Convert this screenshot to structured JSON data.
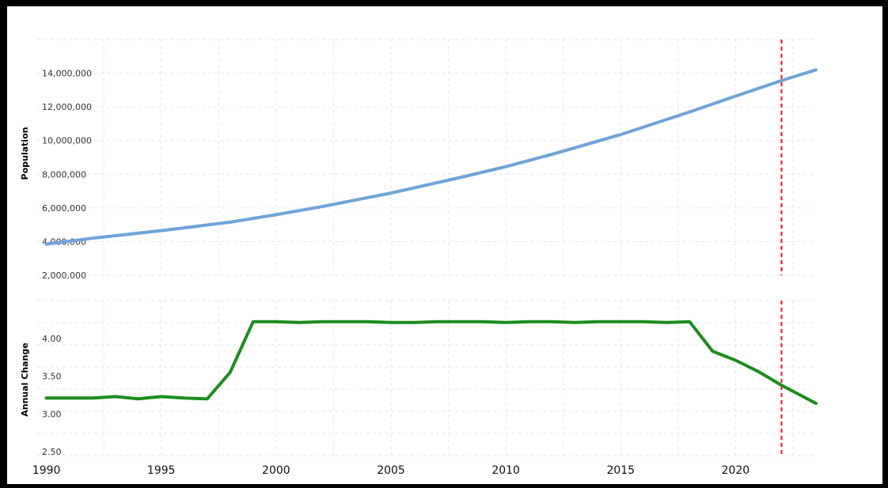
{
  "chart_data": [
    {
      "type": "line",
      "title": "",
      "xlabel": "",
      "ylabel": "Population",
      "ylim": [
        2000000,
        16000000
      ],
      "xlim": [
        1989.6,
        2023.5
      ],
      "yticks": [
        {
          "value": 2000000,
          "label": "2,000,000"
        },
        {
          "value": 4000000,
          "label": "4,000,000"
        },
        {
          "value": 6000000,
          "label": "6,000,000"
        },
        {
          "value": 8000000,
          "label": "8,000,000"
        },
        {
          "value": 10000000,
          "label": "10,000,000"
        },
        {
          "value": 12000000,
          "label": "12,000,000"
        },
        {
          "value": 14000000,
          "label": "14,000,000"
        }
      ],
      "color": "#6fa3d9",
      "reference_line": {
        "x": 2022,
        "color": "#e0141e",
        "style": "dashed"
      },
      "grid": true,
      "x": [
        1990,
        1992,
        1995,
        1998,
        2000,
        2002,
        2005,
        2008,
        2010,
        2012,
        2015,
        2018,
        2020,
        2022,
        2023.5
      ],
      "y": [
        3850000,
        4200000,
        4650000,
        5150000,
        5600000,
        6080000,
        6880000,
        7800000,
        8450000,
        9180000,
        10360000,
        11700000,
        12640000,
        13560000,
        14200000
      ]
    },
    {
      "type": "line",
      "title": "",
      "xlabel": "",
      "ylabel": "Annual Change",
      "ylim": [
        2.45,
        4.5
      ],
      "xlim": [
        1989.6,
        2023.5
      ],
      "yticks": [
        {
          "value": 2.5,
          "label": "2.50"
        },
        {
          "value": 3.0,
          "label": "3.00"
        },
        {
          "value": 3.5,
          "label": "3.50"
        },
        {
          "value": 4.0,
          "label": "4.00"
        }
      ],
      "xticks": [
        1990,
        1995,
        2000,
        2005,
        2010,
        2015,
        2020
      ],
      "color": "#1e8c1e",
      "reference_line": {
        "x": 2022,
        "color": "#e0141e",
        "style": "dashed"
      },
      "grid": true,
      "x": [
        1990,
        1991,
        1992,
        1993,
        1994,
        1995,
        1996,
        1997,
        1998,
        1999,
        2000,
        2001,
        2002,
        2003,
        2004,
        2005,
        2006,
        2007,
        2008,
        2009,
        2010,
        2011,
        2012,
        2013,
        2014,
        2015,
        2016,
        2017,
        2018,
        2019,
        2020,
        2021,
        2022,
        2023.5
      ],
      "y": [
        3.21,
        3.21,
        3.21,
        3.23,
        3.2,
        3.23,
        3.21,
        3.2,
        3.55,
        4.22,
        4.22,
        4.21,
        4.22,
        4.22,
        4.22,
        4.21,
        4.21,
        4.22,
        4.22,
        4.22,
        4.21,
        4.22,
        4.22,
        4.21,
        4.22,
        4.22,
        4.22,
        4.21,
        4.22,
        3.83,
        3.71,
        3.56,
        3.38,
        3.14
      ]
    }
  ]
}
